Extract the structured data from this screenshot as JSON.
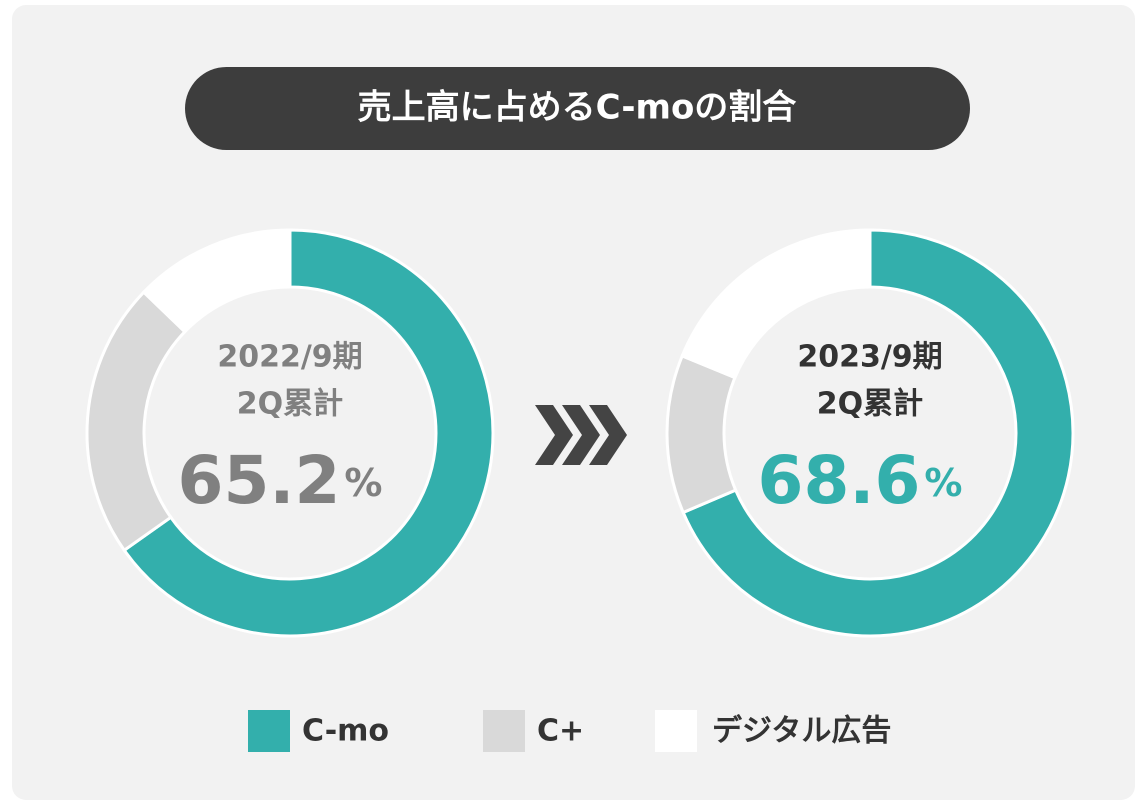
{
  "title": "売上高に占めるC-moの割合",
  "chart_data": [
    {
      "type": "pie",
      "title": "2022/9期",
      "subtitle": "2Q累計",
      "categories": [
        "C-mo",
        "C+",
        "デジタル広告"
      ],
      "values": [
        65.2,
        22.0,
        12.8
      ],
      "colors": [
        "#33afac",
        "#d9d9d9",
        "#ffffff"
      ],
      "unit": "%",
      "label_color": "#808080"
    },
    {
      "type": "pie",
      "title": "2023/9期",
      "subtitle": "2Q累計",
      "categories": [
        "C-mo",
        "C+",
        "デジタル広告"
      ],
      "values": [
        68.6,
        12.6,
        18.8
      ],
      "colors": [
        "#33afac",
        "#d9d9d9",
        "#ffffff"
      ],
      "unit": "%",
      "label_color": "#33afac"
    }
  ]
}
